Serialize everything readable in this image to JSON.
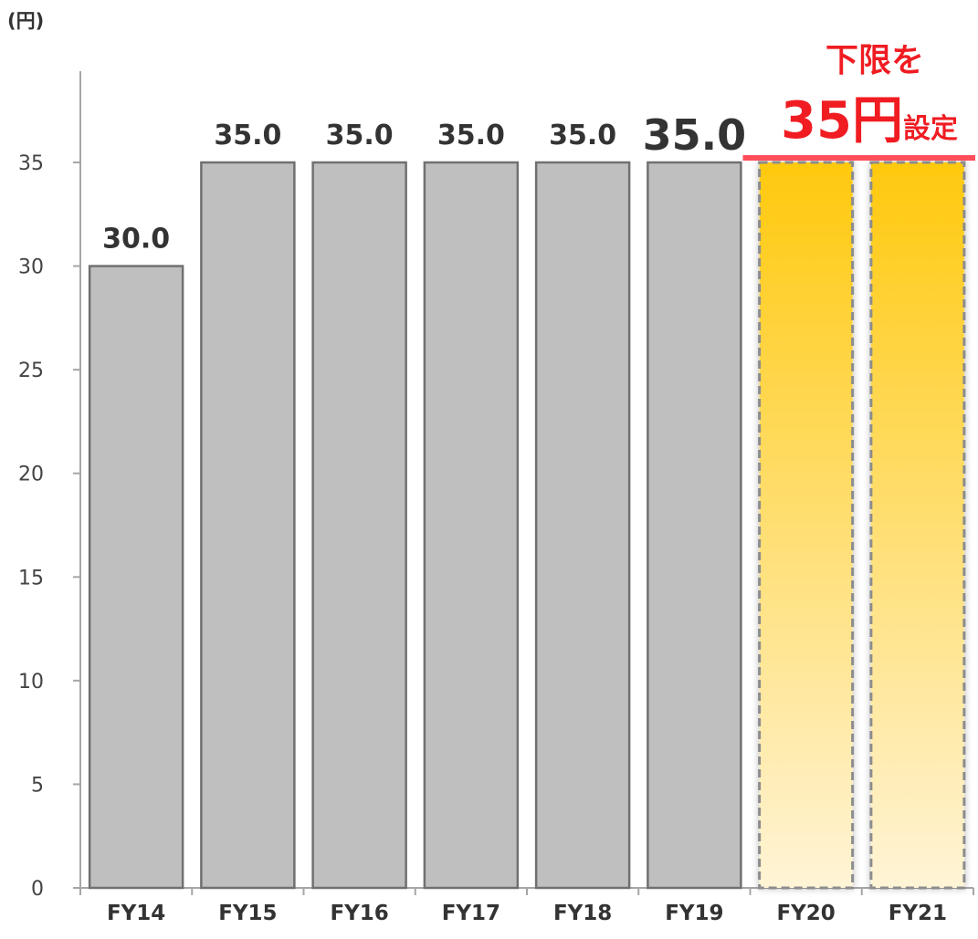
{
  "chart_data": {
    "type": "bar",
    "unit_label": "(円)",
    "categories": [
      "FY14",
      "FY15",
      "FY16",
      "FY17",
      "FY18",
      "FY19",
      "FY20",
      "FY21"
    ],
    "values": [
      30.0,
      35.0,
      35.0,
      35.0,
      35.0,
      35.0,
      35.0,
      35.0
    ],
    "value_labels": [
      "30.0",
      "35.0",
      "35.0",
      "35.0",
      "35.0",
      "35.0",
      "",
      ""
    ],
    "emphasized_label_index": 5,
    "planned_categories": [
      "FY20",
      "FY21"
    ],
    "ylim": [
      0,
      35
    ],
    "yticks": [
      0,
      5,
      10,
      15,
      20,
      25,
      30,
      35
    ],
    "grid": false,
    "legend": "none",
    "annotation": {
      "line1": "下限を",
      "line2_big": "35円",
      "line2_small": "設定",
      "level": 35
    },
    "colors": {
      "actual_bar_fill": "#bfbfbf",
      "actual_bar_stroke": "#707070",
      "planned_gradient_top": "#ffc90e",
      "planned_gradient_bottom": "#fff4d6",
      "planned_stroke": "#8c8c8c",
      "annotation_red": "#f01c24",
      "floor_line": "#ff4d5a",
      "axis": "#a6a6a6"
    }
  }
}
